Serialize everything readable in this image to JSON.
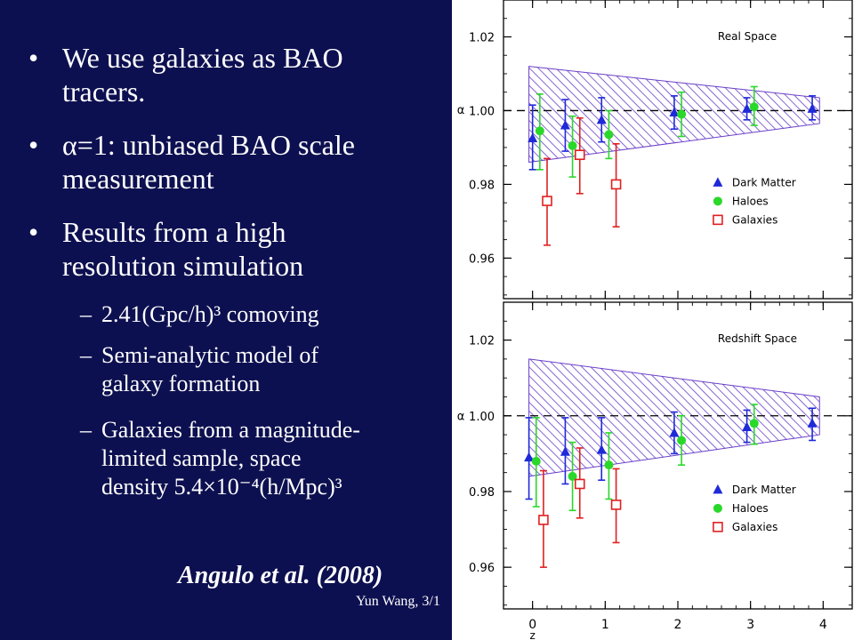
{
  "slide": {
    "bullets": [
      {
        "marker": "•",
        "lines": [
          "We use galaxies as BAO",
          "tracers."
        ]
      },
      {
        "marker": "•",
        "lines": [
          "α=1: unbiased BAO scale",
          "measurement"
        ]
      },
      {
        "marker": "•",
        "lines": [
          "Results from a high",
          "resolution simulation"
        ]
      }
    ],
    "subbullets": [
      {
        "marker": "–",
        "lines": [
          "2.41(Gpc/h)³ comoving"
        ]
      },
      {
        "marker": "–",
        "lines": [
          "Semi-analytic model of",
          "galaxy formation"
        ]
      },
      {
        "marker": "–",
        "lines": [
          "Galaxies from a magnitude-",
          "limited sample, space",
          "density 5.4×10⁻⁴(h/Mpc)³"
        ]
      }
    ],
    "citation": "Angulo et al. (2008)",
    "footer": "Yun Wang, 3/1"
  },
  "colors": {
    "background": "#0d1050",
    "dark_matter": "#1f2ad8",
    "haloes": "#2ad82a",
    "galaxies": "#e02020",
    "band": "#6a3fc8"
  },
  "chart_data": [
    {
      "type": "scatter",
      "title": "Real Space",
      "ylabel": "α",
      "xlim": [
        -0.4,
        4.4
      ],
      "ylim": [
        0.949,
        1.03
      ],
      "yticks": [
        "1.02",
        "1.00",
        "0.98",
        "0.96"
      ],
      "reference_line": 1.0,
      "band": {
        "x": [
          -0.05,
          3.95
        ],
        "upper": [
          1.012,
          1.0035
        ],
        "lower": [
          0.986,
          0.9965
        ]
      },
      "series": [
        {
          "name": "Dark Matter",
          "marker": "triangle",
          "points": [
            {
              "x": 0,
              "y": 0.9925,
              "lo": 0.984,
              "hi": 1.0015
            },
            {
              "x": 0.45,
              "y": 0.996,
              "lo": 0.989,
              "hi": 1.003
            },
            {
              "x": 0.95,
              "y": 0.9975,
              "lo": 0.9915,
              "hi": 1.0035
            },
            {
              "x": 1.95,
              "y": 0.9995,
              "lo": 0.995,
              "hi": 1.004
            },
            {
              "x": 2.95,
              "y": 1.0005,
              "lo": 0.9975,
              "hi": 1.0035
            },
            {
              "x": 3.85,
              "y": 1.0005,
              "lo": 0.9975,
              "hi": 1.004
            }
          ]
        },
        {
          "name": "Haloes",
          "marker": "circle",
          "points": [
            {
              "x": 0.1,
              "y": 0.9945,
              "lo": 0.984,
              "hi": 1.0045
            },
            {
              "x": 0.55,
              "y": 0.9905,
              "lo": 0.982,
              "hi": 0.9985
            },
            {
              "x": 1.05,
              "y": 0.9935,
              "lo": 0.987,
              "hi": 1.0
            },
            {
              "x": 2.05,
              "y": 0.999,
              "lo": 0.993,
              "hi": 1.005
            },
            {
              "x": 3.05,
              "y": 1.001,
              "lo": 0.996,
              "hi": 1.0065
            }
          ]
        },
        {
          "name": "Galaxies",
          "marker": "open-square",
          "points": [
            {
              "x": 0.2,
              "y": 0.9755,
              "lo": 0.9635,
              "hi": 0.987
            },
            {
              "x": 0.65,
              "y": 0.988,
              "lo": 0.9775,
              "hi": 0.998
            },
            {
              "x": 1.15,
              "y": 0.98,
              "lo": 0.9685,
              "hi": 0.991
            }
          ]
        }
      ]
    },
    {
      "type": "scatter",
      "title": "Redshift Space",
      "ylabel": "α",
      "xlabel": "z",
      "xlim": [
        -0.4,
        4.4
      ],
      "ylim": [
        0.949,
        1.03
      ],
      "yticks": [
        "1.02",
        "1.00",
        "0.98",
        "0.96"
      ],
      "xticks": [
        "0",
        "1",
        "2",
        "3",
        "4"
      ],
      "reference_line": 1.0,
      "band": {
        "x": [
          -0.05,
          3.95
        ],
        "upper": [
          1.015,
          1.005
        ],
        "lower": [
          0.984,
          0.995
        ]
      },
      "series": [
        {
          "name": "Dark Matter",
          "marker": "triangle",
          "points": [
            {
              "x": -0.05,
              "y": 0.989,
              "lo": 0.978,
              "hi": 0.9995
            },
            {
              "x": 0.45,
              "y": 0.9905,
              "lo": 0.982,
              "hi": 0.9995
            },
            {
              "x": 0.95,
              "y": 0.991,
              "lo": 0.983,
              "hi": 0.9995
            },
            {
              "x": 1.95,
              "y": 0.9955,
              "lo": 0.99,
              "hi": 1.001
            },
            {
              "x": 2.95,
              "y": 0.997,
              "lo": 0.993,
              "hi": 1.0015
            },
            {
              "x": 3.85,
              "y": 0.998,
              "lo": 0.9935,
              "hi": 1.002
            }
          ]
        },
        {
          "name": "Haloes",
          "marker": "circle",
          "points": [
            {
              "x": 0.05,
              "y": 0.988,
              "lo": 0.976,
              "hi": 0.9995
            },
            {
              "x": 0.55,
              "y": 0.984,
              "lo": 0.975,
              "hi": 0.993
            },
            {
              "x": 1.05,
              "y": 0.987,
              "lo": 0.978,
              "hi": 0.9955
            },
            {
              "x": 2.05,
              "y": 0.9935,
              "lo": 0.987,
              "hi": 1.0
            },
            {
              "x": 3.05,
              "y": 0.998,
              "lo": 0.9925,
              "hi": 1.003
            }
          ]
        },
        {
          "name": "Galaxies",
          "marker": "open-square",
          "points": [
            {
              "x": 0.15,
              "y": 0.9725,
              "lo": 0.96,
              "hi": 0.9855
            },
            {
              "x": 0.65,
              "y": 0.982,
              "lo": 0.973,
              "hi": 0.9915
            },
            {
              "x": 1.15,
              "y": 0.9765,
              "lo": 0.9665,
              "hi": 0.986
            }
          ]
        }
      ]
    }
  ]
}
